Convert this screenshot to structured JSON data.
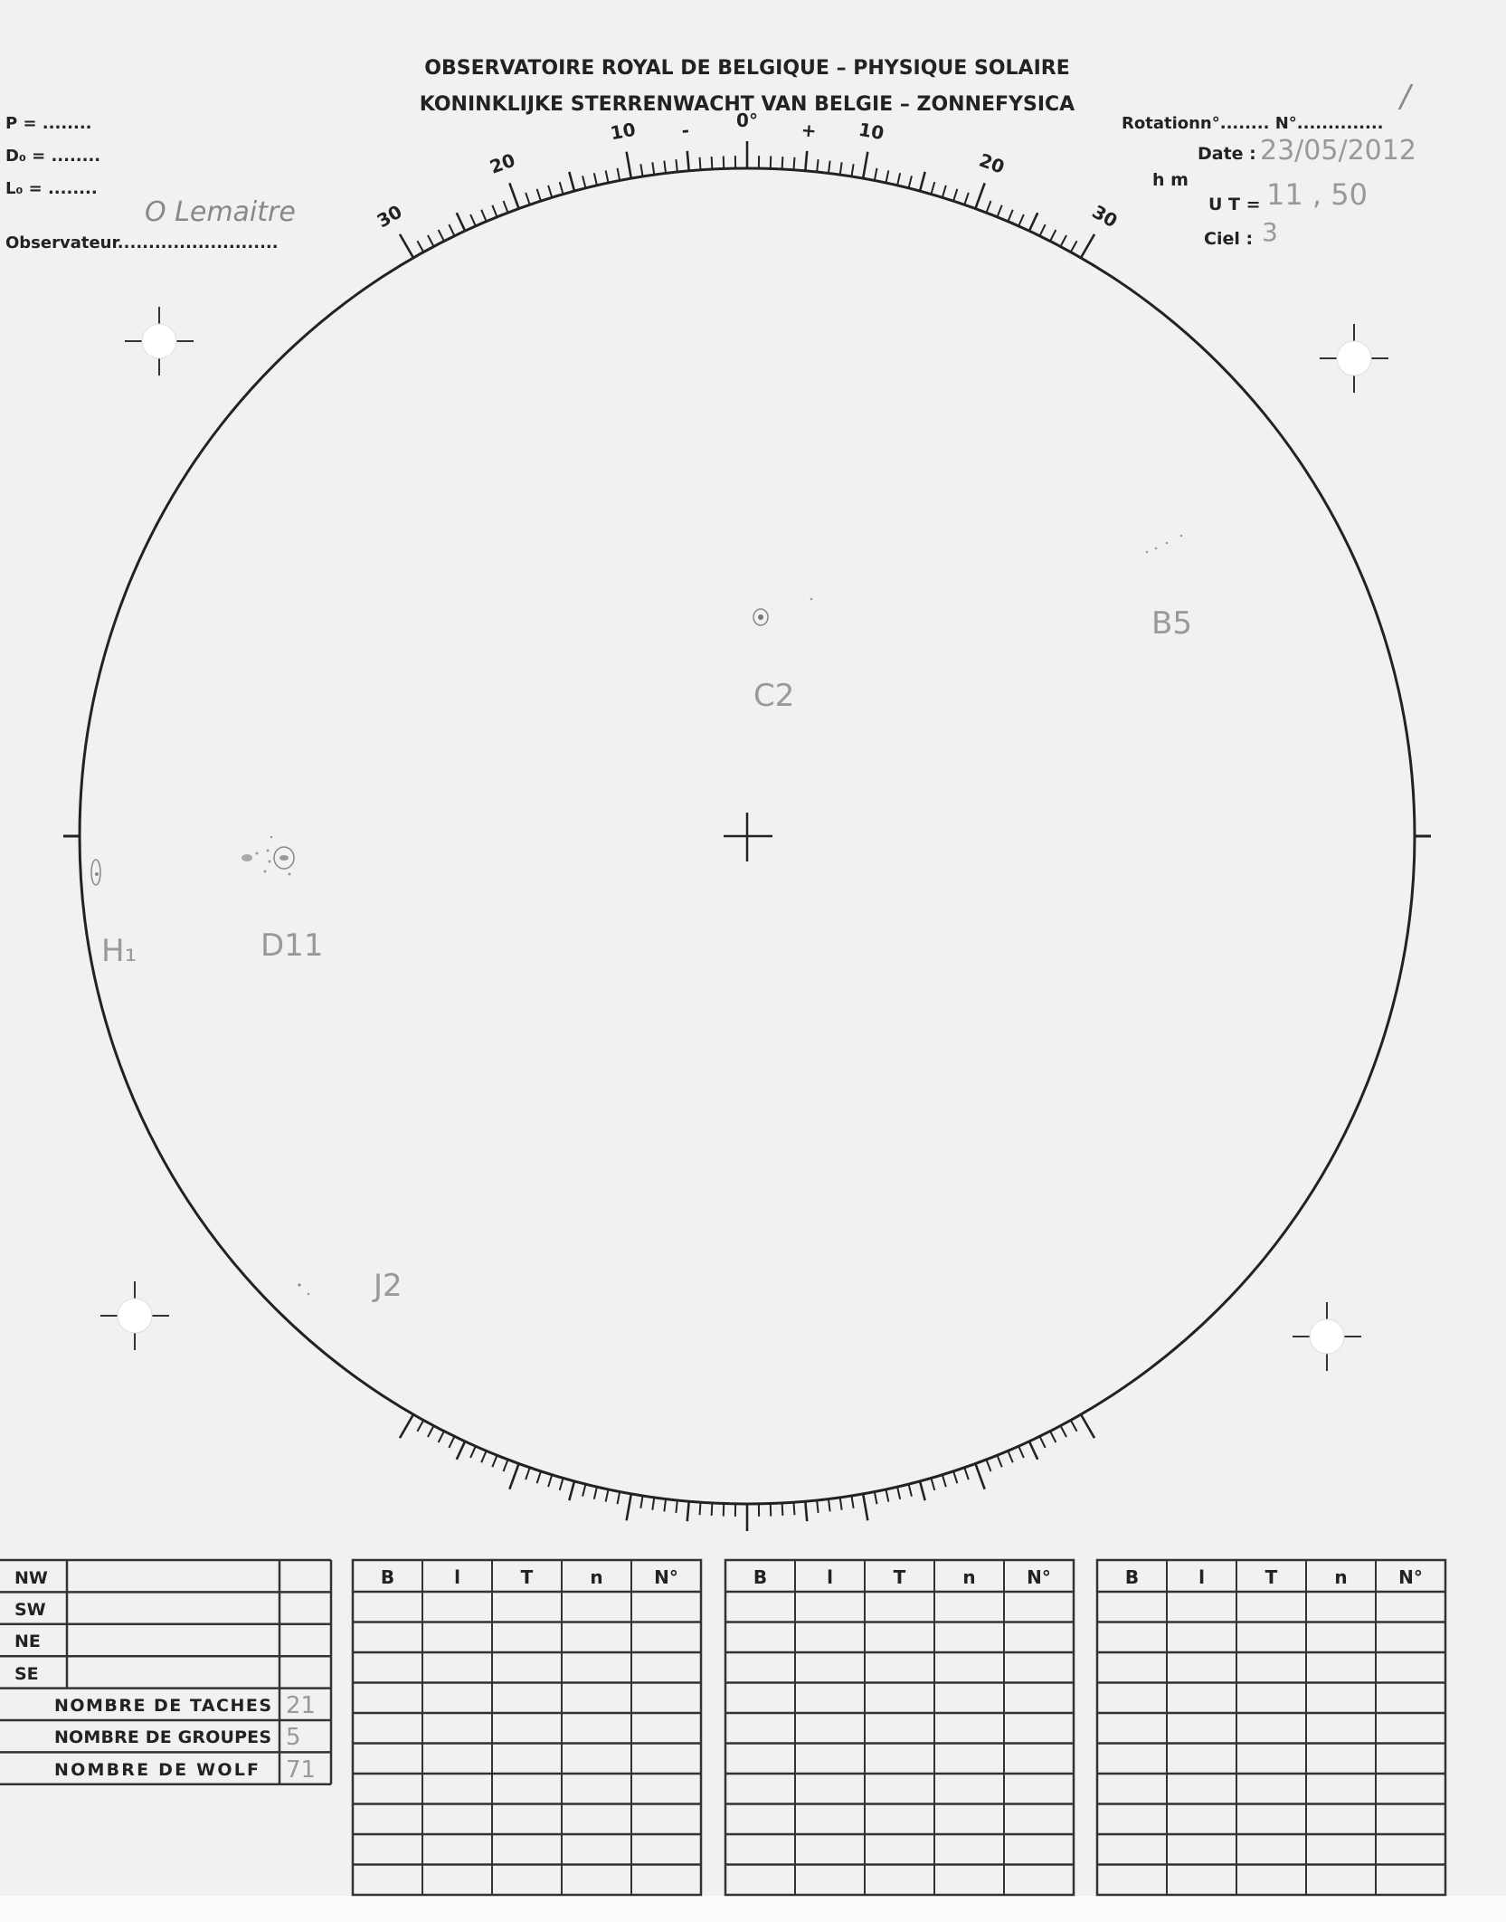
{
  "header": {
    "title_fr": "OBSERVATOIRE ROYAL DE  BELGIQUE – PHYSIQUE SOLAIRE",
    "title_nl": "KONINKLIJKE  STERRENWACHT VAN BELGIE – ZONNEFYSICA"
  },
  "left_fields": {
    "p_label": "P = ........",
    "d0_label": "D₀ = ........",
    "l0_label": "L₀ = ........",
    "observer_label": "Observateur..........................",
    "observer_value": "O Lemaitre"
  },
  "right_fields": {
    "rotation_label": "Rotationn°........ N°..............",
    "rotation_value": "/",
    "date_label": "Date :",
    "date_value": "23/05/2012",
    "hm_label": "h    m",
    "ut_label": "U T =",
    "ut_value": "11 , 50",
    "ciel_label": "Ciel :",
    "ciel_value": "3"
  },
  "scale": {
    "top_labels": [
      "30",
      "20",
      "10",
      "-",
      "0°",
      "+",
      "10",
      "20",
      "30"
    ]
  },
  "disc_annotations": [
    {
      "label": "C2"
    },
    {
      "label": "B5"
    },
    {
      "label": "D11"
    },
    {
      "label": "H₁"
    },
    {
      "label": "J2"
    }
  ],
  "summary_table": {
    "rows": [
      "NW",
      "SW",
      "NE",
      "SE"
    ],
    "nombre_taches_label": "NOMBRE DE TACHES",
    "nombre_taches_value": "21",
    "nombre_groupes_label": "NOMBRE DE GROUPES",
    "nombre_groupes_value": "5",
    "nombre_wolf_label": "NOMBRE  DE WOLF",
    "nombre_wolf_value": "71"
  },
  "group_tables": {
    "columns": [
      "B",
      "l",
      "T",
      "n",
      "N°"
    ]
  }
}
